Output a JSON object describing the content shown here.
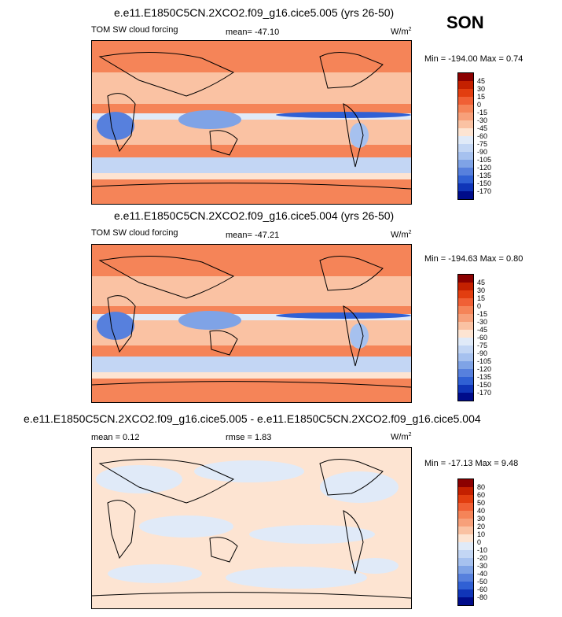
{
  "season": "SON",
  "panels": [
    {
      "title": "e.e11.E1850C5CN.2XCO2.f09_g16.cice5.005 (yrs 26-50)",
      "left_label": "TOM SW cloud forcing",
      "stat_label": "mean= -47.10",
      "units": "W/m",
      "units_sup": "2",
      "minmax": "Min = -194.00 Max =   0.74",
      "colorbar_labels": [
        "45",
        "30",
        "15",
        "0",
        "-15",
        "-30",
        "-45",
        "-60",
        "-75",
        "-90",
        "-105",
        "-120",
        "-135",
        "-150",
        "-170"
      ],
      "colors": [
        "#8b0000",
        "#c42000",
        "#e23e10",
        "#f06035",
        "#f58458",
        "#f7a07a",
        "#fac2a3",
        "#fde4d2",
        "#e0eaf8",
        "#c3d6f4",
        "#a6c1ef",
        "#7fa3e6",
        "#5780dd",
        "#3060d4",
        "#1035b8",
        "#000c8a"
      ]
    },
    {
      "title": "e.e11.E1850C5CN.2XCO2.f09_g16.cice5.004 (yrs 26-50)",
      "left_label": "TOM SW cloud forcing",
      "stat_label": "mean= -47.21",
      "units": "W/m",
      "units_sup": "2",
      "minmax": "Min = -194.63 Max =   0.80",
      "colorbar_labels": [
        "45",
        "30",
        "15",
        "0",
        "-15",
        "-30",
        "-45",
        "-60",
        "-75",
        "-90",
        "-105",
        "-120",
        "-135",
        "-150",
        "-170"
      ],
      "colors": [
        "#8b0000",
        "#c42000",
        "#e23e10",
        "#f06035",
        "#f58458",
        "#f7a07a",
        "#fac2a3",
        "#fde4d2",
        "#e0eaf8",
        "#c3d6f4",
        "#a6c1ef",
        "#7fa3e6",
        "#5780dd",
        "#3060d4",
        "#1035b8",
        "#000c8a"
      ]
    },
    {
      "title": "e.e11.E1850C5CN.2XCO2.f09_g16.cice5.005 - e.e11.E1850C5CN.2XCO2.f09_g16.cice5.004",
      "left_label": "mean =   0.12",
      "stat_label": "rmse =   1.83",
      "units": "W/m",
      "units_sup": "2",
      "minmax": "Min = -17.13 Max =   9.48",
      "colorbar_labels": [
        "80",
        "60",
        "50",
        "40",
        "30",
        "20",
        "10",
        "0",
        "-10",
        "-20",
        "-30",
        "-40",
        "-50",
        "-60",
        "-80"
      ],
      "colors": [
        "#8b0000",
        "#c42000",
        "#e23e10",
        "#f06035",
        "#f58458",
        "#f7a07a",
        "#fac2a3",
        "#fde4d2",
        "#e0eaf8",
        "#c3d6f4",
        "#a6c1ef",
        "#7fa3e6",
        "#5780dd",
        "#3060d4",
        "#1035b8",
        "#000c8a"
      ]
    }
  ]
}
